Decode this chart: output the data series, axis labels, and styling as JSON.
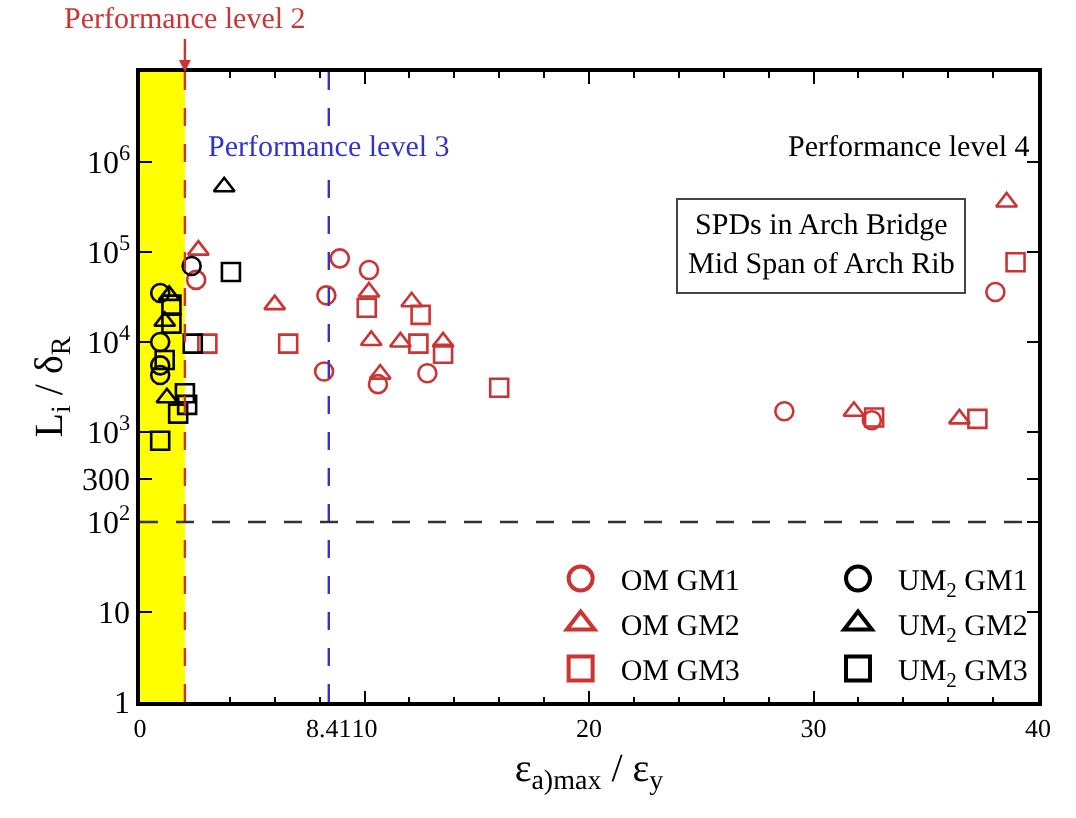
{
  "chart_data": {
    "type": "scatter",
    "xlabel": "ε$_{a)max}$ / ε$_{y}$",
    "ylabel": "L$_{i}$ / δ$_{R}$",
    "xlim": [
      0,
      40
    ],
    "xticks": [
      0,
      {
        "value": 8.41,
        "label": "8.41"
      },
      10,
      20,
      30,
      40
    ],
    "ylim": [
      1,
      10000000
    ],
    "log": true,
    "yticks": [
      1,
      10,
      {
        "value": 100,
        "label": "10$^{2}$"
      },
      {
        "value": 300,
        "label": "300"
      },
      {
        "value": 1000,
        "label": "10$^{3}$"
      },
      {
        "value": 10000,
        "label": "10$^{4}$"
      },
      {
        "value": 100000,
        "label": "10$^{5}$"
      },
      {
        "value": 1000000,
        "label": "10$^{6}$"
      }
    ],
    "grid": false,
    "legend": "bottom right",
    "bands": [
      {
        "axis": "x",
        "from": 0,
        "to": 2,
        "color": "#ffff00"
      }
    ],
    "ref_lines": [
      {
        "axis": "x",
        "value": 2,
        "label": "Performance level 2",
        "color": "#cc3333",
        "line_style": "dashed"
      },
      {
        "axis": "x",
        "value": 8.41,
        "label": "Performance level 3",
        "color": "#3333cc",
        "line_style": "dashed"
      },
      {
        "axis": "y",
        "value": 100,
        "color": "#333333",
        "line_style": "dashed"
      }
    ],
    "annotations": [
      "Performance level 4",
      "SPDs in Arch Bridge\nMid Span of Arch Rib"
    ],
    "series": [
      {
        "name": "OM GM1",
        "color": "#cc3333",
        "marker": "circle",
        "x": [
          2.5,
          8.9,
          10.2,
          8.3,
          8.2,
          10.6,
          12.8,
          28.7,
          32.6,
          38.1
        ],
        "values": [
          49000,
          85000,
          63000,
          33000,
          4700,
          3400,
          4500,
          1700,
          1350,
          36000
        ]
      },
      {
        "name": "OM GM2",
        "color": "#cc3333",
        "marker": "triangle",
        "x": [
          2.6,
          6.0,
          10.2,
          10.3,
          11.6,
          12.1,
          13.5,
          10.7,
          31.8,
          36.5,
          38.6
        ],
        "values": [
          105000,
          26000,
          36000,
          10400,
          10000,
          28000,
          10000,
          4400,
          1700,
          1400,
          360000
        ]
      },
      {
        "name": "OM GM3",
        "color": "#cc3333",
        "marker": "square",
        "x": [
          3.0,
          6.6,
          10.1,
          12.4,
          12.5,
          13.5,
          16.0,
          32.7,
          37.3,
          39.0
        ],
        "values": [
          9600,
          9600,
          24000,
          9600,
          20000,
          7400,
          3100,
          1450,
          1400,
          77000
        ]
      },
      {
        "name": "UM$_{2}$ GM1",
        "color": "#000000",
        "marker": "circle",
        "x": [
          2.3,
          0.9,
          0.9,
          0.9,
          0.9
        ],
        "values": [
          70000,
          35000,
          10000,
          5500,
          4300
        ]
      },
      {
        "name": "UM$_{2}$ GM2",
        "color": "#000000",
        "marker": "triangle",
        "x": [
          3.75,
          1.3,
          1.1,
          1.2
        ],
        "values": [
          530000,
          33000,
          17000,
          2400
        ]
      },
      {
        "name": "UM$_{2}$ GM3",
        "color": "#000000",
        "marker": "square",
        "x": [
          4.05,
          2.35,
          1.4,
          1.4,
          1.1,
          2.0,
          2.1,
          1.7,
          0.9
        ],
        "values": [
          60000,
          9600,
          26000,
          16000,
          6300,
          2700,
          2000,
          1600,
          800
        ]
      }
    ]
  }
}
